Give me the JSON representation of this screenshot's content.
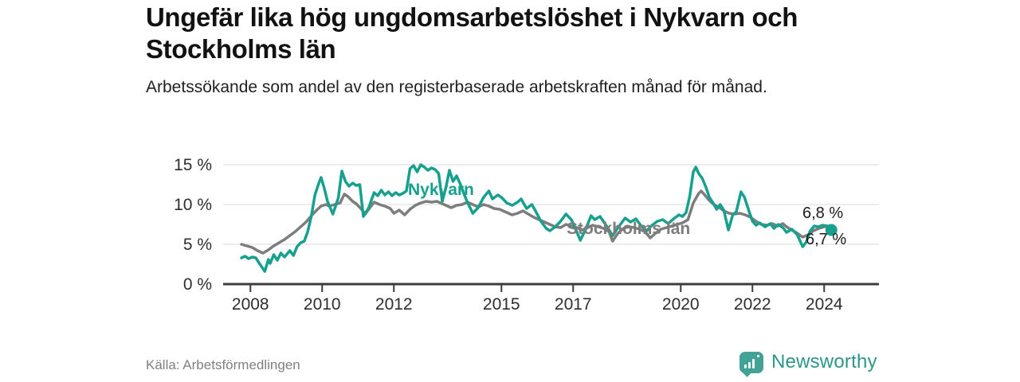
{
  "header": {
    "title": "Ungefär lika hög ungdomsarbetslöshet i Nykvarn och Stockholms län",
    "subtitle": "Arbetssökande som andel av den registerbaserade arbetskraften månad för månad."
  },
  "footer": {
    "source": "Källa: Arbetsförmedlingen",
    "brand": "Newsworthy",
    "brand_icon": "bar-chart-pin-icon"
  },
  "colors": {
    "nykvarn": "#17a08e",
    "stockholms_lan": "#7d7d7d",
    "grid": "#dbdbdb",
    "axis": "#3c3c3c",
    "tick_text": "#2e2e2e",
    "title_text": "#121212",
    "muted_text": "#808080",
    "brand_teal": "#2e9689"
  },
  "chart_data": {
    "type": "line",
    "title": "Ungefär lika hög ungdomsarbetslöshet i Nykvarn och Stockholms län",
    "subtitle": "Arbetssökande som andel av den registerbaserade arbetskraften månad för månad.",
    "unit": "%",
    "grid": true,
    "legend_position": "inline-labels",
    "x_axis": {
      "label": "",
      "range": [
        2007.75,
        2025.5
      ],
      "ticks": [
        2008,
        2010,
        2012,
        2015,
        2017,
        2020,
        2022,
        2024
      ],
      "labels": [
        "2008",
        "2010",
        "2012",
        "2015",
        "2017",
        "2020",
        "2022",
        "2024"
      ]
    },
    "y_axis": {
      "label": "",
      "range": [
        0,
        16
      ],
      "ticks": [
        0,
        5,
        10,
        15
      ],
      "labels": [
        "0 %",
        "5 %",
        "10 %",
        "15 %"
      ]
    },
    "series": [
      {
        "name": "Nykvarn",
        "color": "#17a08e",
        "end_label": "6,8 %",
        "end_value": 6.8,
        "points": [
          [
            2007.75,
            3.3
          ],
          [
            2007.85,
            3.5
          ],
          [
            2007.95,
            3.2
          ],
          [
            2008.05,
            3.4
          ],
          [
            2008.15,
            3.3
          ],
          [
            2008.25,
            2.6
          ],
          [
            2008.4,
            1.6
          ],
          [
            2008.5,
            3.1
          ],
          [
            2008.55,
            2.6
          ],
          [
            2008.65,
            3.7
          ],
          [
            2008.75,
            3.0
          ],
          [
            2008.85,
            3.9
          ],
          [
            2008.95,
            3.4
          ],
          [
            2009.1,
            4.2
          ],
          [
            2009.2,
            3.6
          ],
          [
            2009.3,
            4.7
          ],
          [
            2009.4,
            5.2
          ],
          [
            2009.5,
            5.4
          ],
          [
            2009.6,
            6.6
          ],
          [
            2009.7,
            8.6
          ],
          [
            2009.8,
            11.2
          ],
          [
            2009.9,
            12.6
          ],
          [
            2009.97,
            13.4
          ],
          [
            2010.05,
            12.2
          ],
          [
            2010.15,
            10.4
          ],
          [
            2010.3,
            8.8
          ],
          [
            2010.45,
            10.8
          ],
          [
            2010.55,
            14.2
          ],
          [
            2010.65,
            12.9
          ],
          [
            2010.75,
            12.3
          ],
          [
            2010.85,
            12.7
          ],
          [
            2010.95,
            12.4
          ],
          [
            2011.05,
            12.5
          ],
          [
            2011.15,
            8.5
          ],
          [
            2011.3,
            9.6
          ],
          [
            2011.45,
            11.5
          ],
          [
            2011.55,
            11.1
          ],
          [
            2011.65,
            11.8
          ],
          [
            2011.75,
            11.2
          ],
          [
            2011.85,
            11.6
          ],
          [
            2011.95,
            11.1
          ],
          [
            2012.05,
            11.5
          ],
          [
            2012.15,
            11.2
          ],
          [
            2012.25,
            11.4
          ],
          [
            2012.35,
            11.7
          ],
          [
            2012.45,
            14.5
          ],
          [
            2012.55,
            14.9
          ],
          [
            2012.65,
            14.1
          ],
          [
            2012.75,
            15.0
          ],
          [
            2012.85,
            14.7
          ],
          [
            2012.95,
            14.3
          ],
          [
            2013.05,
            14.6
          ],
          [
            2013.15,
            14.4
          ],
          [
            2013.25,
            13.9
          ],
          [
            2013.35,
            10.4
          ],
          [
            2013.45,
            12.1
          ],
          [
            2013.55,
            14.3
          ],
          [
            2013.65,
            12.9
          ],
          [
            2013.75,
            13.6
          ],
          [
            2013.85,
            12.6
          ],
          [
            2013.95,
            11.4
          ],
          [
            2014.05,
            10.3
          ],
          [
            2014.2,
            8.9
          ],
          [
            2014.35,
            9.6
          ],
          [
            2014.5,
            10.9
          ],
          [
            2014.65,
            11.7
          ],
          [
            2014.75,
            10.7
          ],
          [
            2014.9,
            11.2
          ],
          [
            2015.0,
            10.9
          ],
          [
            2015.15,
            10.2
          ],
          [
            2015.3,
            9.9
          ],
          [
            2015.45,
            10.3
          ],
          [
            2015.55,
            10.7
          ],
          [
            2015.7,
            9.5
          ],
          [
            2015.85,
            10.0
          ],
          [
            2015.95,
            9.2
          ],
          [
            2016.1,
            7.9
          ],
          [
            2016.25,
            7.0
          ],
          [
            2016.35,
            6.7
          ],
          [
            2016.5,
            7.2
          ],
          [
            2016.65,
            7.9
          ],
          [
            2016.8,
            8.8
          ],
          [
            2016.95,
            8.1
          ],
          [
            2017.1,
            6.6
          ],
          [
            2017.2,
            5.5
          ],
          [
            2017.35,
            6.9
          ],
          [
            2017.5,
            8.6
          ],
          [
            2017.6,
            8.1
          ],
          [
            2017.75,
            8.5
          ],
          [
            2017.9,
            7.5
          ],
          [
            2018.0,
            6.8
          ],
          [
            2018.1,
            6.1
          ],
          [
            2018.25,
            7.1
          ],
          [
            2018.45,
            8.3
          ],
          [
            2018.6,
            7.8
          ],
          [
            2018.75,
            8.2
          ],
          [
            2018.9,
            7.3
          ],
          [
            2019.05,
            6.7
          ],
          [
            2019.2,
            7.4
          ],
          [
            2019.35,
            7.9
          ],
          [
            2019.5,
            8.1
          ],
          [
            2019.65,
            7.6
          ],
          [
            2019.8,
            8.2
          ],
          [
            2019.95,
            8.7
          ],
          [
            2020.05,
            8.5
          ],
          [
            2020.15,
            9.0
          ],
          [
            2020.25,
            11.0
          ],
          [
            2020.35,
            14.1
          ],
          [
            2020.42,
            14.7
          ],
          [
            2020.5,
            13.9
          ],
          [
            2020.6,
            13.3
          ],
          [
            2020.7,
            12.2
          ],
          [
            2020.8,
            10.9
          ],
          [
            2020.9,
            10.2
          ],
          [
            2021.0,
            9.4
          ],
          [
            2021.1,
            10.0
          ],
          [
            2021.2,
            9.3
          ],
          [
            2021.33,
            6.8
          ],
          [
            2021.45,
            8.7
          ],
          [
            2021.55,
            9.1
          ],
          [
            2021.68,
            11.6
          ],
          [
            2021.78,
            10.9
          ],
          [
            2021.9,
            9.2
          ],
          [
            2022.0,
            7.9
          ],
          [
            2022.1,
            7.4
          ],
          [
            2022.2,
            7.7
          ],
          [
            2022.35,
            7.2
          ],
          [
            2022.5,
            7.6
          ],
          [
            2022.6,
            7.0
          ],
          [
            2022.72,
            7.5
          ],
          [
            2022.85,
            7.1
          ],
          [
            2022.95,
            6.5
          ],
          [
            2023.1,
            6.9
          ],
          [
            2023.25,
            6.2
          ],
          [
            2023.4,
            4.7
          ],
          [
            2023.5,
            5.3
          ],
          [
            2023.6,
            6.6
          ],
          [
            2023.72,
            7.3
          ],
          [
            2023.85,
            7.2
          ],
          [
            2023.95,
            7.4
          ],
          [
            2024.1,
            7.3
          ],
          [
            2024.2,
            6.8
          ]
        ]
      },
      {
        "name": "Stockholms län",
        "color": "#7d7d7d",
        "end_label": "6,7 %",
        "end_value": 6.7,
        "points": [
          [
            2007.75,
            5.0
          ],
          [
            2007.9,
            4.8
          ],
          [
            2008.05,
            4.6
          ],
          [
            2008.2,
            4.2
          ],
          [
            2008.35,
            3.9
          ],
          [
            2008.5,
            4.3
          ],
          [
            2008.65,
            4.8
          ],
          [
            2008.8,
            5.2
          ],
          [
            2008.95,
            5.6
          ],
          [
            2009.1,
            6.1
          ],
          [
            2009.25,
            6.6
          ],
          [
            2009.4,
            7.2
          ],
          [
            2009.55,
            7.8
          ],
          [
            2009.7,
            8.6
          ],
          [
            2009.85,
            9.3
          ],
          [
            2009.97,
            9.8
          ],
          [
            2010.1,
            10.0
          ],
          [
            2010.2,
            9.8
          ],
          [
            2010.35,
            10.0
          ],
          [
            2010.5,
            10.2
          ],
          [
            2010.62,
            11.3
          ],
          [
            2010.72,
            11.0
          ],
          [
            2010.85,
            10.4
          ],
          [
            2010.95,
            10.1
          ],
          [
            2011.1,
            9.4
          ],
          [
            2011.2,
            8.8
          ],
          [
            2011.35,
            9.7
          ],
          [
            2011.45,
            10.3
          ],
          [
            2011.6,
            10.0
          ],
          [
            2011.75,
            9.8
          ],
          [
            2011.9,
            9.5
          ],
          [
            2012.0,
            8.9
          ],
          [
            2012.15,
            9.3
          ],
          [
            2012.3,
            8.7
          ],
          [
            2012.45,
            9.4
          ],
          [
            2012.6,
            9.9
          ],
          [
            2012.75,
            10.2
          ],
          [
            2012.9,
            10.4
          ],
          [
            2013.05,
            10.3
          ],
          [
            2013.2,
            10.4
          ],
          [
            2013.35,
            10.1
          ],
          [
            2013.5,
            9.8
          ],
          [
            2013.6,
            9.6
          ],
          [
            2013.75,
            9.9
          ],
          [
            2013.9,
            10.0
          ],
          [
            2014.05,
            10.3
          ],
          [
            2014.2,
            10.0
          ],
          [
            2014.35,
            9.7
          ],
          [
            2014.5,
            10.0
          ],
          [
            2014.65,
            9.8
          ],
          [
            2014.8,
            9.5
          ],
          [
            2014.95,
            9.4
          ],
          [
            2015.1,
            9.1
          ],
          [
            2015.3,
            8.7
          ],
          [
            2015.45,
            8.9
          ],
          [
            2015.6,
            9.2
          ],
          [
            2015.75,
            8.8
          ],
          [
            2015.9,
            8.4
          ],
          [
            2016.05,
            8.1
          ],
          [
            2016.2,
            7.8
          ],
          [
            2016.35,
            7.5
          ],
          [
            2016.5,
            7.2
          ],
          [
            2016.65,
            7.1
          ],
          [
            2016.8,
            7.5
          ],
          [
            2016.95,
            7.3
          ],
          [
            2017.1,
            7.1
          ],
          [
            2017.25,
            6.8
          ],
          [
            2017.4,
            7.1
          ],
          [
            2017.55,
            7.4
          ],
          [
            2017.7,
            7.2
          ],
          [
            2017.85,
            7.0
          ],
          [
            2018.0,
            6.6
          ],
          [
            2018.1,
            5.4
          ],
          [
            2018.25,
            6.4
          ],
          [
            2018.4,
            7.0
          ],
          [
            2018.55,
            7.2
          ],
          [
            2018.7,
            7.1
          ],
          [
            2018.85,
            6.9
          ],
          [
            2019.0,
            6.6
          ],
          [
            2019.15,
            5.8
          ],
          [
            2019.3,
            6.4
          ],
          [
            2019.45,
            6.9
          ],
          [
            2019.6,
            7.1
          ],
          [
            2019.75,
            7.3
          ],
          [
            2019.9,
            7.5
          ],
          [
            2020.05,
            7.7
          ],
          [
            2020.2,
            8.1
          ],
          [
            2020.35,
            10.2
          ],
          [
            2020.5,
            11.4
          ],
          [
            2020.57,
            11.7
          ],
          [
            2020.67,
            11.2
          ],
          [
            2020.8,
            10.5
          ],
          [
            2020.92,
            10.0
          ],
          [
            2021.05,
            9.7
          ],
          [
            2021.2,
            9.2
          ],
          [
            2021.35,
            8.9
          ],
          [
            2021.5,
            8.8
          ],
          [
            2021.65,
            8.9
          ],
          [
            2021.8,
            8.7
          ],
          [
            2021.95,
            8.4
          ],
          [
            2022.1,
            7.9
          ],
          [
            2022.25,
            7.5
          ],
          [
            2022.4,
            7.4
          ],
          [
            2022.55,
            7.6
          ],
          [
            2022.7,
            7.3
          ],
          [
            2022.85,
            7.6
          ],
          [
            2022.95,
            7.2
          ],
          [
            2023.1,
            6.8
          ],
          [
            2023.25,
            6.4
          ],
          [
            2023.4,
            5.9
          ],
          [
            2023.55,
            6.2
          ],
          [
            2023.7,
            6.7
          ],
          [
            2023.85,
            7.0
          ],
          [
            2024.0,
            7.2
          ],
          [
            2024.1,
            7.3
          ],
          [
            2024.2,
            6.7
          ]
        ]
      }
    ]
  }
}
